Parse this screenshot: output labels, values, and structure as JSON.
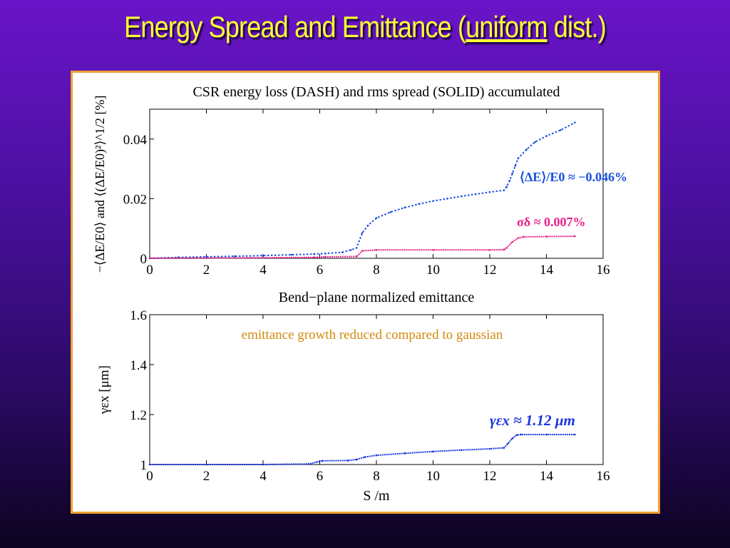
{
  "slide": {
    "title_pre": "Energy Spread and Emittance (",
    "title_u": "uniform",
    "title_post": " dist.)"
  },
  "chart_data": [
    {
      "type": "line",
      "title": "CSR energy loss (DASH) and rms spread (SOLID) accumulated",
      "xlabel": "",
      "ylabel": "−⟨ΔE/E0⟩ and ⟨(ΔE/E0)²⟩^1/2 [%]",
      "xlim": [
        0,
        16
      ],
      "ylim": [
        0,
        0.05
      ],
      "xticks": [
        "0",
        "2",
        "4",
        "6",
        "8",
        "10",
        "12",
        "14",
        "16"
      ],
      "yticks": [
        "0",
        "0.02",
        "0.04"
      ],
      "grid": false,
      "series": [
        {
          "name": "CSR energy loss (DASH)",
          "color": "#1a4fe0",
          "style": "dashed",
          "x": [
            0,
            1,
            2,
            3,
            4,
            5,
            5.8,
            6.2,
            6.8,
            7.1,
            7.3,
            7.5,
            7.7,
            8.0,
            8.5,
            9.0,
            9.5,
            10.0,
            10.5,
            11.0,
            11.5,
            12.0,
            12.5,
            12.6,
            12.7,
            12.8,
            12.9,
            13.0,
            13.3,
            13.6,
            14.0,
            14.5,
            15.0
          ],
          "y": [
            0,
            0.0003,
            0.0005,
            0.0007,
            0.0009,
            0.0012,
            0.0014,
            0.0016,
            0.002,
            0.0028,
            0.0035,
            0.0085,
            0.011,
            0.0135,
            0.0155,
            0.017,
            0.0182,
            0.0192,
            0.02,
            0.0208,
            0.0215,
            0.0222,
            0.0228,
            0.024,
            0.026,
            0.0285,
            0.031,
            0.0335,
            0.0365,
            0.039,
            0.041,
            0.043,
            0.0455
          ],
          "annotation": "⟨ΔE⟩/E0 ≈ −0.046%"
        },
        {
          "name": "rms spread (SOLID)",
          "color": "#e8208c",
          "style": "solid",
          "x": [
            0,
            2,
            4,
            5.8,
            6.2,
            7.3,
            7.5,
            8,
            10,
            12,
            12.5,
            12.6,
            12.8,
            13.0,
            13.2,
            14,
            15
          ],
          "y": [
            0,
            0.0001,
            0.0002,
            0.0003,
            0.0005,
            0.0006,
            0.0025,
            0.0028,
            0.0028,
            0.0028,
            0.0029,
            0.0035,
            0.0055,
            0.0068,
            0.0072,
            0.0073,
            0.0074
          ],
          "annotation": "σδ ≈ 0.007%"
        }
      ]
    },
    {
      "type": "line",
      "title": "Bend−plane normalized emittance",
      "xlabel": "S /m",
      "ylabel": "γεx [μm]",
      "xlim": [
        0,
        16
      ],
      "ylim": [
        1,
        1.6
      ],
      "xticks": [
        "0",
        "2",
        "4",
        "6",
        "8",
        "10",
        "12",
        "14",
        "16"
      ],
      "yticks": [
        "1",
        "1.2",
        "1.4",
        "1.6"
      ],
      "grid": false,
      "annotation_top": "emittance growth reduced compared to gaussian",
      "series": [
        {
          "name": "emittance",
          "color": "#1a36e0",
          "style": "solid",
          "x": [
            0,
            2,
            4,
            5.6,
            5.9,
            6.1,
            7.0,
            7.3,
            7.6,
            8,
            9,
            10,
            11,
            12,
            12.5,
            12.65,
            12.8,
            12.95,
            13.1,
            14,
            15
          ],
          "y": [
            1.0,
            1.0,
            1.0,
            1.002,
            1.01,
            1.015,
            1.016,
            1.02,
            1.03,
            1.037,
            1.045,
            1.052,
            1.058,
            1.063,
            1.067,
            1.085,
            1.105,
            1.118,
            1.12,
            1.12,
            1.12
          ],
          "annotation": "γεx ≈ 1.12 μm"
        }
      ]
    }
  ]
}
